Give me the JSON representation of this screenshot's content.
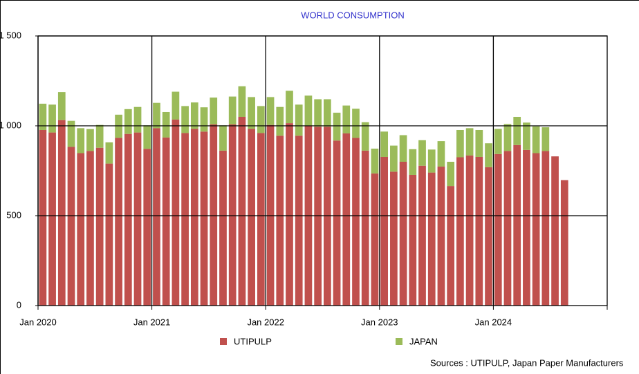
{
  "chart_data": {
    "type": "stacked-bar",
    "title": "WORLD CONSUMPTION",
    "source": "Sources : UTIPULP, Japan Paper Manufacturers",
    "categories": [
      "Jan 2020",
      null,
      null,
      null,
      null,
      null,
      null,
      null,
      null,
      null,
      null,
      null,
      "Jan 2021",
      null,
      null,
      null,
      null,
      null,
      null,
      null,
      null,
      null,
      null,
      null,
      "Jan 2022",
      null,
      null,
      null,
      null,
      null,
      null,
      null,
      null,
      null,
      null,
      null,
      "Jan 2023",
      null,
      null,
      null,
      null,
      null,
      null,
      null,
      null,
      null,
      null,
      null,
      "Jan 2024",
      null,
      null,
      null,
      null,
      null,
      null,
      null,
      null,
      null,
      null,
      null
    ],
    "series": [
      {
        "name": "UTIPULP",
        "color": "#c0504d",
        "values": [
          977,
          963,
          1032,
          883,
          848,
          860,
          878,
          790,
          933,
          955,
          963,
          872,
          987,
          935,
          1035,
          960,
          983,
          968,
          1008,
          862,
          1008,
          1050,
          983,
          960,
          1005,
          945,
          1015,
          945,
          1000,
          995,
          995,
          918,
          958,
          933,
          862,
          735,
          827,
          745,
          800,
          727,
          778,
          740,
          773,
          665,
          825,
          835,
          827,
          770,
          843,
          860,
          893,
          866,
          848,
          860,
          830,
          698,
          null,
          null,
          null,
          null
        ]
      },
      {
        "name": "JAPAN",
        "color": "#9bbb59",
        "values": [
          146,
          155,
          156,
          145,
          139,
          122,
          127,
          118,
          129,
          138,
          142,
          131,
          141,
          142,
          155,
          150,
          147,
          135,
          149,
          141,
          155,
          170,
          177,
          150,
          155,
          160,
          180,
          173,
          168,
          153,
          153,
          155,
          155,
          162,
          158,
          138,
          141,
          145,
          148,
          143,
          142,
          128,
          142,
          135,
          152,
          152,
          150,
          133,
          140,
          150,
          157,
          152,
          149,
          132,
          null,
          null,
          null,
          null,
          null,
          null
        ]
      }
    ],
    "ylim": [
      0,
      1500
    ],
    "yticks": [
      0,
      500,
      {
        "value": 1000,
        "label": "1 000"
      },
      {
        "value": 1500,
        "label": "1 500"
      }
    ],
    "grid": true
  }
}
